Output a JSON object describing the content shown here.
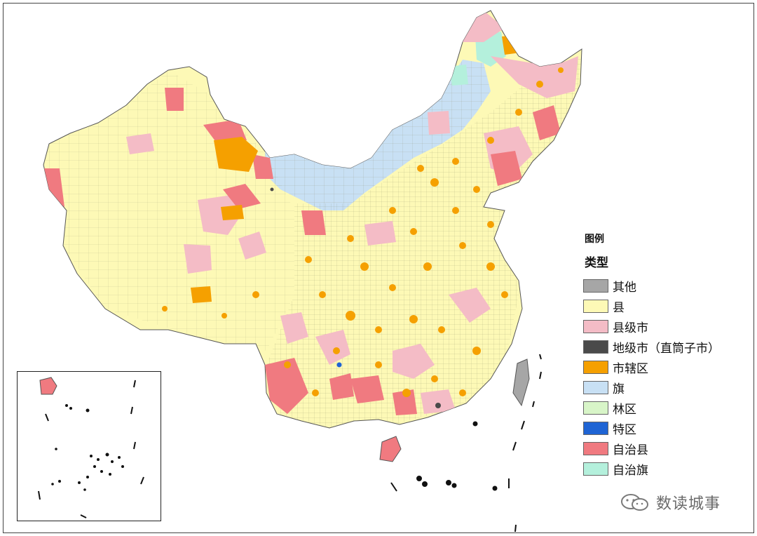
{
  "legend": {
    "title": "图例",
    "subtitle": "类型",
    "items": [
      {
        "label": "其他",
        "color": "#a6a6a6"
      },
      {
        "label": "县",
        "color": "#fdf9b6"
      },
      {
        "label": "县级市",
        "color": "#f4bcc6"
      },
      {
        "label": "地级市（直筒子市）",
        "color": "#4a4a4a"
      },
      {
        "label": "市辖区",
        "color": "#f5a000"
      },
      {
        "label": "旗",
        "color": "#c8e0f4"
      },
      {
        "label": "林区",
        "color": "#d8f5c8"
      },
      {
        "label": "特区",
        "color": "#1f64d4"
      },
      {
        "label": "自治县",
        "color": "#f07a80"
      },
      {
        "label": "自治旗",
        "color": "#b4f0dc"
      }
    ]
  },
  "watermark": {
    "text": "数读城事",
    "icon": "wechat-icon"
  }
}
